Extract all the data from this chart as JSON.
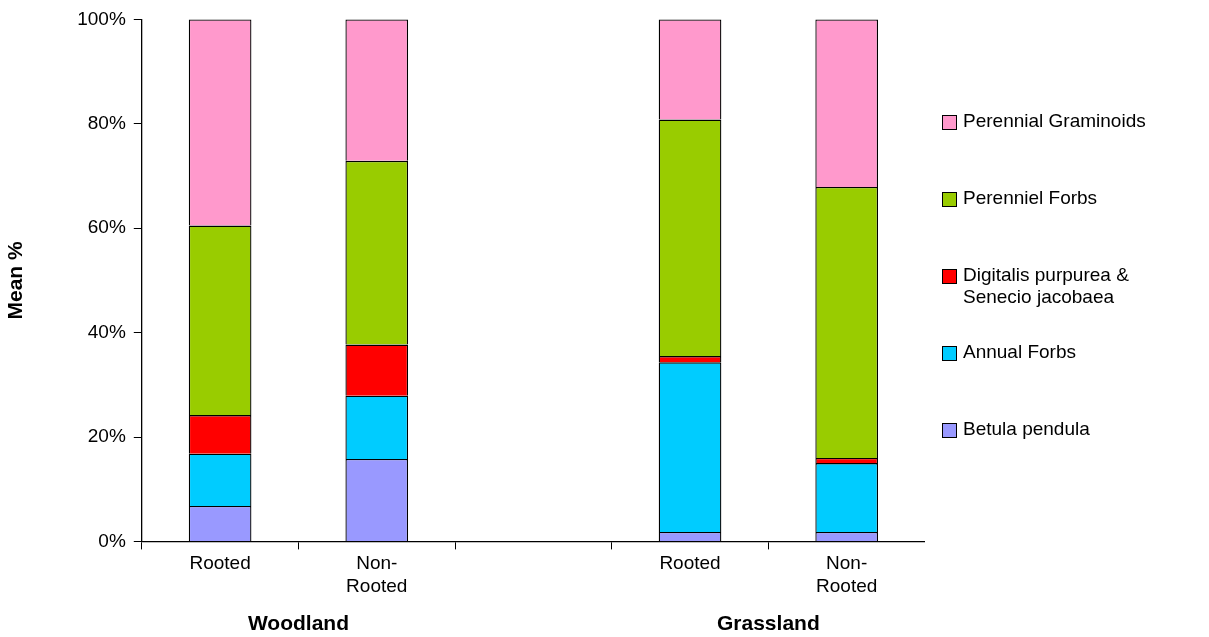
{
  "chart_data": {
    "type": "bar",
    "stacked": true,
    "ylabel": "Mean %",
    "categories": [
      "Rooted",
      "Non-Rooted",
      null,
      "Rooted",
      "Non-Rooted"
    ],
    "series": [
      {
        "name": "Betula pendula",
        "color": "#9999ff",
        "values": [
          6.8,
          15.8,
          null,
          1.8,
          1.8
        ]
      },
      {
        "name": "Annual Forbs",
        "color": "#00ccff",
        "values": [
          10.0,
          12.1,
          null,
          32.5,
          13.2
        ]
      },
      {
        "name": "Digitalis purpurea & Senecio jacobaea",
        "color": "#ff0000",
        "values": [
          7.4,
          9.8,
          null,
          1.2,
          1.0
        ]
      },
      {
        "name": "Perenniel Forbs",
        "color": "#99cc00",
        "values": [
          36.3,
          35.2,
          null,
          45.3,
          51.9
        ]
      },
      {
        "name": "Perennial Graminoids",
        "color": "#ff99cc",
        "values": [
          39.5,
          27.1,
          null,
          19.2,
          32.1
        ]
      }
    ],
    "ylim": [
      0,
      100
    ],
    "yticks": [
      {
        "value": 0,
        "label": "0%"
      },
      {
        "value": 20,
        "label": "20%"
      },
      {
        "value": 40,
        "label": "40%"
      },
      {
        "value": 60,
        "label": "60%"
      },
      {
        "value": 80,
        "label": "80%"
      },
      {
        "value": 100,
        "label": "100%"
      }
    ],
    "grid": false,
    "legend": "right",
    "annotations": [
      "Woodland",
      "Grassland"
    ]
  }
}
